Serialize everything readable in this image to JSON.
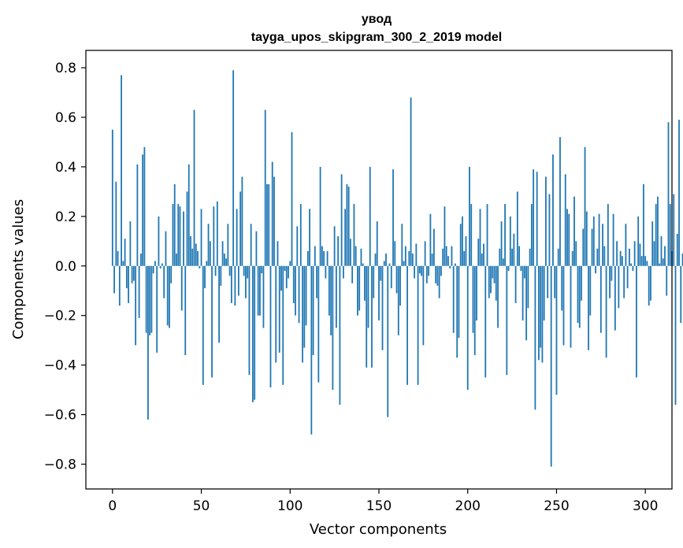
{
  "chart_data": {
    "type": "bar",
    "title_line1": "увод",
    "title_line2": "tayga_upos_skipgram_300_2_2019 model",
    "xlabel": "Vector components",
    "ylabel": "Components values",
    "xlim": [
      -15,
      315
    ],
    "ylim": [
      -0.9,
      0.87
    ],
    "xticks": [
      0,
      50,
      100,
      150,
      200,
      250,
      300
    ],
    "xtick_labels": [
      "0",
      "50",
      "100",
      "150",
      "200",
      "250",
      "300"
    ],
    "yticks": [
      0.8,
      0.6,
      0.4,
      0.2,
      0.0,
      -0.2,
      -0.4,
      -0.6,
      -0.8
    ],
    "ytick_labels": [
      "0.8",
      "0.6",
      "0.4",
      "0.2",
      "0.0",
      "−0.2",
      "−0.4",
      "−0.6",
      "−0.8"
    ],
    "bar_color": "#1f77b4",
    "values": [
      0.55,
      -0.11,
      0.34,
      0.06,
      -0.16,
      0.77,
      0.02,
      0.11,
      -0.09,
      -0.15,
      0.18,
      -0.07,
      -0.06,
      -0.32,
      0.41,
      -0.21,
      0.05,
      0.45,
      0.48,
      -0.27,
      -0.62,
      -0.28,
      -0.27,
      -0.03,
      0.02,
      -0.35,
      0.2,
      -0.01,
      0.01,
      -0.13,
      0.14,
      -0.24,
      -0.25,
      -0.07,
      0.25,
      0.33,
      0.05,
      0.25,
      0.24,
      -0.18,
      0.22,
      -0.36,
      0.3,
      0.41,
      0.12,
      0.07,
      0.63,
      0.09,
      0.06,
      -0.01,
      0.23,
      -0.48,
      -0.09,
      0.02,
      0.17,
      0.1,
      -0.45,
      0.24,
      -0.04,
      0.26,
      -0.31,
      -0.08,
      0.1,
      0.05,
      0.03,
      0.17,
      -0.04,
      -0.15,
      0.79,
      -0.16,
      0.23,
      -0.12,
      0.3,
      0.36,
      -0.04,
      -0.13,
      -0.05,
      -0.44,
      0.17,
      -0.55,
      -0.54,
      0.14,
      -0.2,
      -0.2,
      -0.03,
      -0.25,
      0.63,
      0.33,
      0.33,
      -0.49,
      0.42,
      0.36,
      -0.39,
      0.1,
      -0.35,
      -0.1,
      -0.48,
      -0.02,
      -0.09,
      -0.05,
      0.02,
      0.54,
      -0.15,
      -0.2,
      0.16,
      -0.23,
      0.25,
      -0.39,
      -0.33,
      -0.24,
      0.06,
      0.23,
      -0.68,
      -0.36,
      0.08,
      -0.13,
      -0.47,
      0.4,
      0.08,
      0.06,
      -0.05,
      0.06,
      -0.2,
      -0.28,
      -0.5,
      0.16,
      -0.25,
      0.12,
      -0.56,
      0.37,
      -0.05,
      0.23,
      0.33,
      0.32,
      0.11,
      -0.07,
      0.25,
      0.08,
      -0.2,
      -0.18,
      0.07,
      0.01,
      -0.14,
      -0.41,
      -0.25,
      0.4,
      -0.41,
      -0.13,
      0.05,
      0.18,
      -0.22,
      -0.06,
      -0.34,
      0.02,
      0.05,
      -0.61,
      0.01,
      -0.09,
      0.39,
      0.1,
      -0.11,
      -0.28,
      -0.16,
      0.17,
      0.02,
      0.08,
      -0.48,
      0.06,
      0.68,
      0.05,
      -0.05,
      0.09,
      -0.48,
      -0.03,
      -0.04,
      -0.32,
      0.1,
      -0.07,
      -0.04,
      0.21,
      0.05,
      0.15,
      -0.07,
      -0.08,
      -0.13,
      -0.04,
      0.07,
      0.24,
      0.08,
      0.04,
      -0.01,
      0.08,
      -0.27,
      0.01,
      -0.37,
      -0.29,
      0.17,
      0.2,
      0.06,
      0.12,
      -0.5,
      0.4,
      0.25,
      -0.27,
      -0.36,
      -0.22,
      0.11,
      0.23,
      0.05,
      0.09,
      -0.45,
      0.25,
      -0.13,
      -0.11,
      -0.05,
      -0.07,
      -0.14,
      -0.25,
      0.07,
      0.18,
      0.03,
      0.25,
      -0.44,
      -0.02,
      0.2,
      0.07,
      0.13,
      -0.15,
      0.3,
      0.08,
      -0.02,
      -0.22,
      -0.05,
      -0.3,
      -0.17,
      0.07,
      0.25,
      0.39,
      -0.58,
      0.38,
      -0.38,
      -0.33,
      -0.39,
      -0.22,
      0.36,
      -0.13,
      0.29,
      -0.81,
      0.45,
      -0.13,
      -0.52,
      0.07,
      0.52,
      -0.18,
      -0.32,
      0.37,
      0.23,
      0.21,
      -0.33,
      0.06,
      0.28,
      0.1,
      -0.23,
      -0.25,
      -0.14,
      0.15,
      0.48,
      0.22,
      -0.34,
      -0.2,
      0.15,
      0.2,
      -0.03,
      0.07,
      0.21,
      -0.27,
      0.17,
      0.08,
      -0.37,
      0.25,
      -0.13,
      -0.06,
      0.21,
      -0.26,
      0.1,
      -0.17,
      0.06,
      0.04,
      -0.13,
      0.17,
      -0.09,
      0.07,
      0.01,
      -0.02,
      0.1,
      -0.45,
      0.2,
      0.09,
      0.04,
      0.33,
      0.04,
      0.02,
      -0.16,
      -0.14,
      0.18,
      0.1,
      0.25,
      0.28,
      0.01,
      0.12,
      0.03,
      0.08,
      -0.12,
      0.58,
      0.25,
      0.06,
      0.29,
      -0.56,
      0.13,
      0.59,
      -0.23,
      0.05
    ]
  }
}
